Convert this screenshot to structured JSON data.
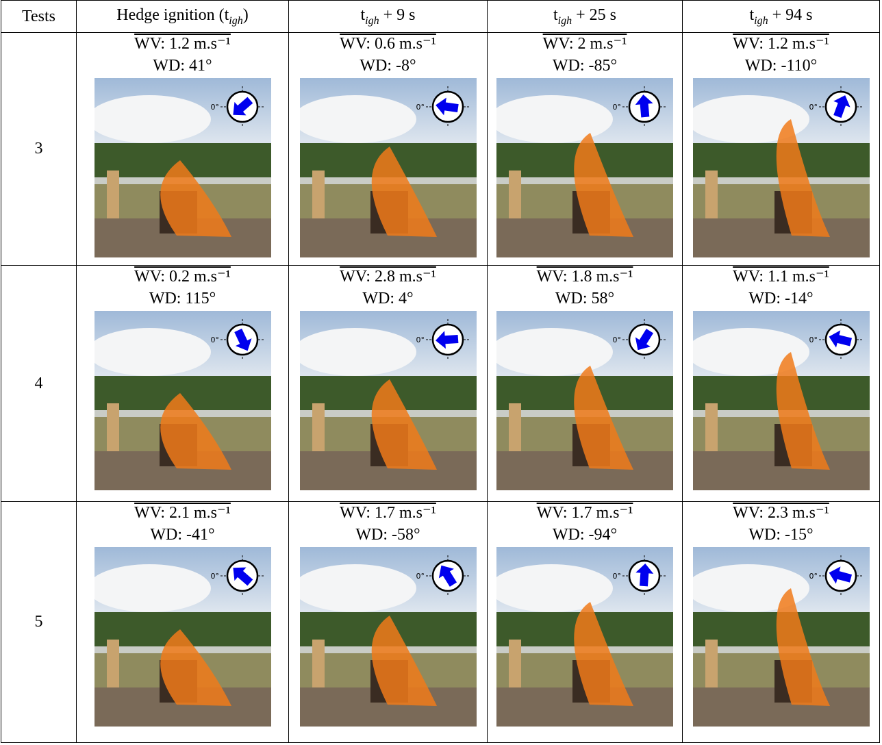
{
  "table": {
    "tests_header": "Tests",
    "time_headers": [
      {
        "pre": "Hedge ignition (t",
        "sub": "igh",
        "post": ")"
      },
      {
        "pre": "t",
        "sub": "igh",
        "post": " + 9 s"
      },
      {
        "pre": "t",
        "sub": "igh",
        "post": " + 25 s"
      },
      {
        "pre": "t",
        "sub": "igh",
        "post": " + 94 s"
      }
    ],
    "compass_label": "0°",
    "rows": [
      {
        "test": "3",
        "cells": [
          {
            "wv": "WV: 1.2 m.s⁻¹",
            "wd_label": "WD: 41°",
            "wd": 41
          },
          {
            "wv": "WV: 0.6 m.s⁻¹",
            "wd_label": "WD: -8°",
            "wd": -8
          },
          {
            "wv": "WV: 2 m.s⁻¹",
            "wd_label": "WD: -85°",
            "wd": -85
          },
          {
            "wv": "WV: 1.2 m.s⁻¹",
            "wd_label": "WD: -110°",
            "wd": -110
          }
        ]
      },
      {
        "test": "4",
        "cells": [
          {
            "wv": "WV: 0.2 m.s⁻¹",
            "wd_label": "WD: 115°",
            "wd": 115
          },
          {
            "wv": "WV: 2.8 m.s⁻¹",
            "wd_label": "WD: 4°",
            "wd": 4
          },
          {
            "wv": "WV: 1.8 m.s⁻¹",
            "wd_label": "WD: 58°",
            "wd": 58
          },
          {
            "wv": "WV: 1.1 m.s⁻¹",
            "wd_label": "WD: -14°",
            "wd": -14
          }
        ]
      },
      {
        "test": "5",
        "cells": [
          {
            "wv": "WV: 2.1 m.s⁻¹",
            "wd_label": "WD: -41°",
            "wd": -41
          },
          {
            "wv": "WV: 1.7 m.s⁻¹",
            "wd_label": "WD: -58°",
            "wd": -58
          },
          {
            "wv": "WV: 1.7 m.s⁻¹",
            "wd_label": "WD: -94°",
            "wd": -94
          },
          {
            "wv": "WV: 2.3 m.s⁻¹",
            "wd_label": "WD: -15°",
            "wd": -15
          }
        ]
      }
    ]
  }
}
